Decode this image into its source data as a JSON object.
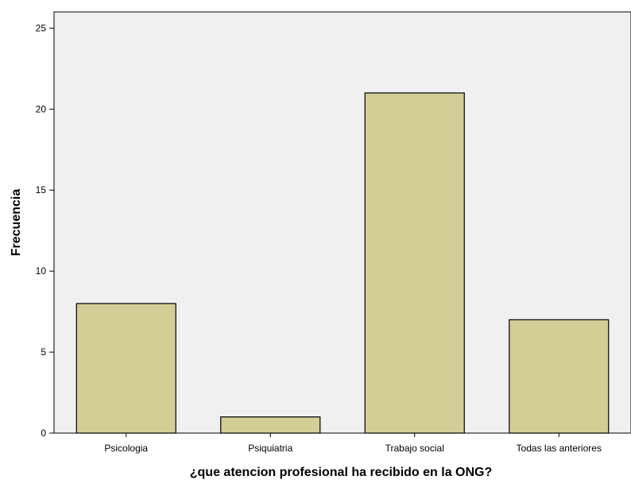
{
  "chart_data": {
    "type": "bar",
    "categories": [
      "Psicologia",
      "Psiquiatria",
      "Trabajo social",
      "Todas las anteriores"
    ],
    "values": [
      8,
      1,
      21,
      7
    ],
    "xlabel": "¿que atencion profesional ha recibido en la ONG?",
    "ylabel": "Frecuencia",
    "ylim": [
      0,
      26
    ],
    "yticks": [
      0,
      5,
      10,
      15,
      20,
      25
    ],
    "grid": false,
    "colors": {
      "plot_background": "#f0f0f0",
      "bar_fill": "#d3cd96",
      "bar_stroke": "#000000"
    }
  }
}
